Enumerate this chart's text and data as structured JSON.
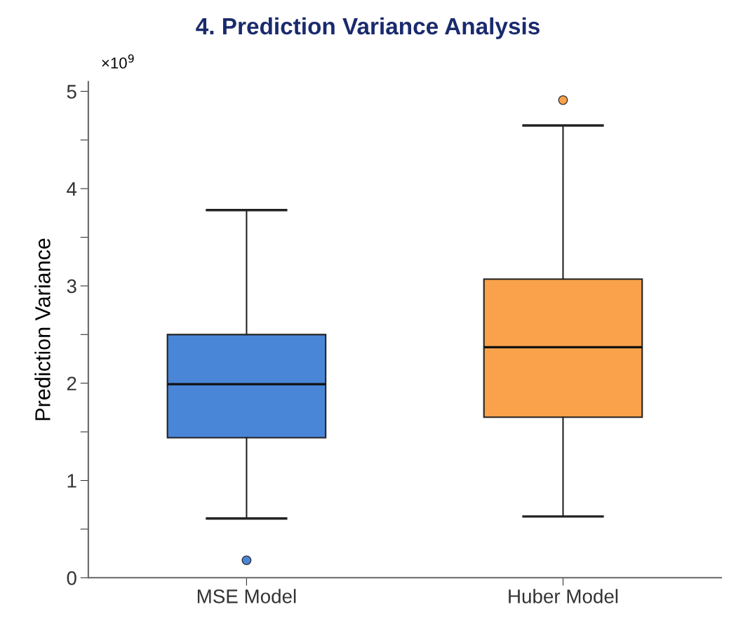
{
  "chart_data": {
    "type": "box",
    "title": "4. Prediction Variance Analysis",
    "ylabel": "Prediction Variance",
    "categories": [
      "MSE Model",
      "Huber Model"
    ],
    "series": [
      {
        "color": "#4a86d8",
        "boxes": [
          {
            "low": 0.61,
            "q1": 1.44,
            "median": 1.99,
            "q3": 2.5,
            "high": 3.78,
            "outliers": [
              0.18
            ]
          },
          null
        ]
      },
      {
        "color": "#f9a24b",
        "boxes": [
          null,
          {
            "low": 0.63,
            "q1": 1.65,
            "median": 2.37,
            "q3": 3.07,
            "high": 4.65,
            "outliers": [
              4.91
            ]
          }
        ]
      }
    ],
    "ylim": [
      0,
      5.1
    ],
    "yticks": [
      0,
      {
        "value": 0.5,
        "label": null
      },
      1,
      {
        "value": 1.5,
        "label": null
      },
      2,
      {
        "value": 2.5,
        "label": null
      },
      3,
      {
        "value": 3.5,
        "label": null
      },
      4,
      {
        "value": 4.5,
        "label": null
      },
      5
    ],
    "annotations": [
      "×10$^{9}$"
    ],
    "grid": false,
    "legend": false
  }
}
